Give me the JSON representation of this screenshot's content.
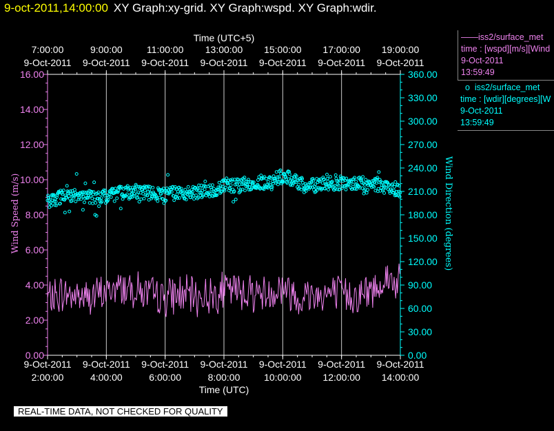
{
  "header": {
    "timestamp": "9-oct-2011,14:00:00",
    "graphs": "XY Graph:xy-grid.  XY Graph:wspd.  XY Graph:wdir."
  },
  "legend": {
    "series1": {
      "line_mark": "——",
      "name": "iss2/surface_met",
      "desc": "time : [wspd][m/s][Wind",
      "date": "9-Oct-2011",
      "time": "13:59:49"
    },
    "series2": {
      "point_mark": "o",
      "name": "iss2/surface_met",
      "desc": "time : [wdir][degrees][W",
      "date": "9-Oct-2011",
      "time": "13:59:49"
    }
  },
  "notice": "REAL-TIME DATA, NOT CHECKED FOR QUALITY",
  "chart_data": {
    "type": "line",
    "top_axis": {
      "title": "Time (UTC+5)",
      "ticks": [
        {
          "time": "7:00:00",
          "date": "9-Oct-2011"
        },
        {
          "time": "9:00:00",
          "date": "9-Oct-2011"
        },
        {
          "time": "11:00:00",
          "date": "9-Oct-2011"
        },
        {
          "time": "13:00:00",
          "date": "9-Oct-2011"
        },
        {
          "time": "15:00:00",
          "date": "9-Oct-2011"
        },
        {
          "time": "17:00:00",
          "date": "9-Oct-2011"
        },
        {
          "time": "19:00:00",
          "date": "9-Oct-2011"
        }
      ]
    },
    "x_axis": {
      "title": "Time (UTC)",
      "range": [
        "2:00:00",
        "14:00:00"
      ],
      "ticks": [
        {
          "time": "2:00:00",
          "date": "9-Oct-2011"
        },
        {
          "time": "4:00:00",
          "date": "9-Oct-2011"
        },
        {
          "time": "6:00:00",
          "date": "9-Oct-2011"
        },
        {
          "time": "8:00:00",
          "date": "9-Oct-2011"
        },
        {
          "time": "10:00:00",
          "date": "9-Oct-2011"
        },
        {
          "time": "12:00:00",
          "date": "9-Oct-2011"
        },
        {
          "time": "14:00:00",
          "date": "9-Oct-2011"
        }
      ]
    },
    "y_left": {
      "title": "Wind Speed (m/s)",
      "range": [
        0,
        16
      ],
      "ticks": [
        "0.00",
        "2.00",
        "4.00",
        "6.00",
        "8.00",
        "10.00",
        "12.00",
        "14.00",
        "16.00"
      ],
      "color": "#ee82ee"
    },
    "y_right": {
      "title": "Wind Direction (degrees)",
      "range": [
        0,
        360
      ],
      "ticks": [
        "0.00",
        "30.00",
        "60.00",
        "90.00",
        "120.00",
        "150.00",
        "180.00",
        "210.00",
        "240.00",
        "270.00",
        "300.00",
        "330.00",
        "360.00"
      ],
      "color": "#00ffff"
    },
    "grid": "vertical lines at bottom-axis ticks",
    "series": [
      {
        "axis": "left",
        "style": "line",
        "color": "#ee82ee",
        "x_hours_utc": [
          2.0,
          2.5,
          3.0,
          3.5,
          4.0,
          4.5,
          5.0,
          5.5,
          6.0,
          6.5,
          7.0,
          7.5,
          8.0,
          8.5,
          9.0,
          9.5,
          10.0,
          10.5,
          11.0,
          11.5,
          12.0,
          12.5,
          13.0,
          13.5,
          14.0
        ],
        "values": [
          3.2,
          3.5,
          3.4,
          3.3,
          3.6,
          3.9,
          3.8,
          3.4,
          3.3,
          3.5,
          3.3,
          3.4,
          3.7,
          3.7,
          3.6,
          3.5,
          3.9,
          3.3,
          3.5,
          3.5,
          3.5,
          3.4,
          3.6,
          4.4,
          4.0
        ]
      },
      {
        "axis": "right",
        "style": "points",
        "color": "#00ffff",
        "x_hours_utc": [
          2.0,
          2.5,
          3.0,
          3.5,
          4.0,
          4.5,
          5.0,
          5.5,
          6.0,
          6.5,
          7.0,
          7.5,
          8.0,
          8.5,
          9.0,
          9.5,
          10.0,
          10.5,
          11.0,
          11.5,
          12.0,
          12.5,
          13.0,
          13.5,
          14.0
        ],
        "values": [
          197,
          204,
          205,
          203,
          203,
          208,
          210,
          207,
          206,
          208,
          209,
          209,
          219,
          217,
          222,
          221,
          230,
          222,
          217,
          220,
          221,
          219,
          221,
          216,
          212
        ]
      }
    ]
  }
}
